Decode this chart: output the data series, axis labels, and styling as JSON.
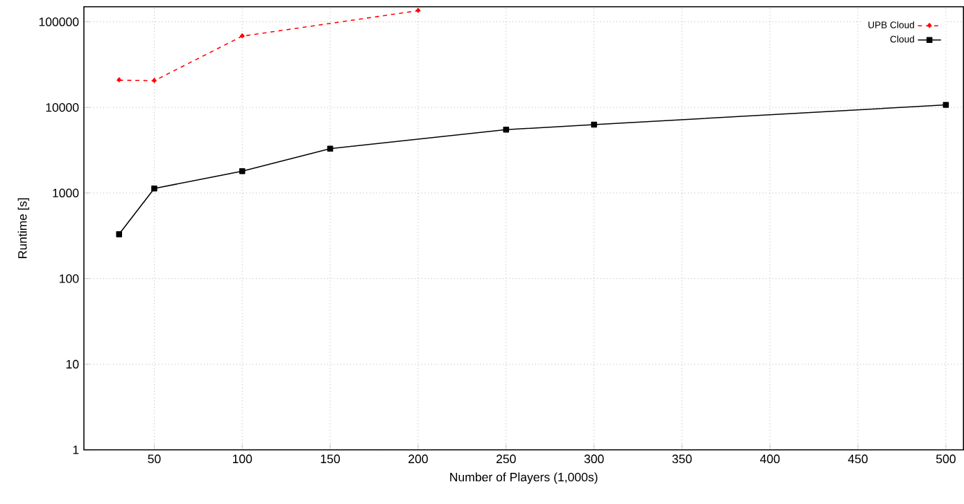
{
  "chart_data": {
    "type": "line",
    "xlabel": "Number of Players (1,000s)",
    "ylabel": "Runtime [s]",
    "log": "y",
    "grid": true,
    "legend": "top right",
    "xlim": [
      10,
      510
    ],
    "ylim": [
      1,
      150000
    ],
    "xticks": [
      50,
      100,
      150,
      200,
      250,
      300,
      350,
      400,
      450,
      500
    ],
    "yticks": [
      1,
      10,
      100,
      1000,
      10000,
      100000
    ],
    "series": [
      {
        "name": "UPB Cloud",
        "color": "#ff0000",
        "marker": "diamond",
        "line_style": "dashed",
        "x": [
          30,
          50,
          100,
          200
        ],
        "values": [
          20800,
          20500,
          68000,
          135000
        ]
      },
      {
        "name": "Cloud",
        "color": "#000000",
        "marker": "square",
        "line_style": "solid",
        "x": [
          30,
          50,
          100,
          150,
          250,
          300,
          500
        ],
        "values": [
          330,
          1130,
          1800,
          3300,
          5500,
          6300,
          10700
        ]
      }
    ]
  }
}
